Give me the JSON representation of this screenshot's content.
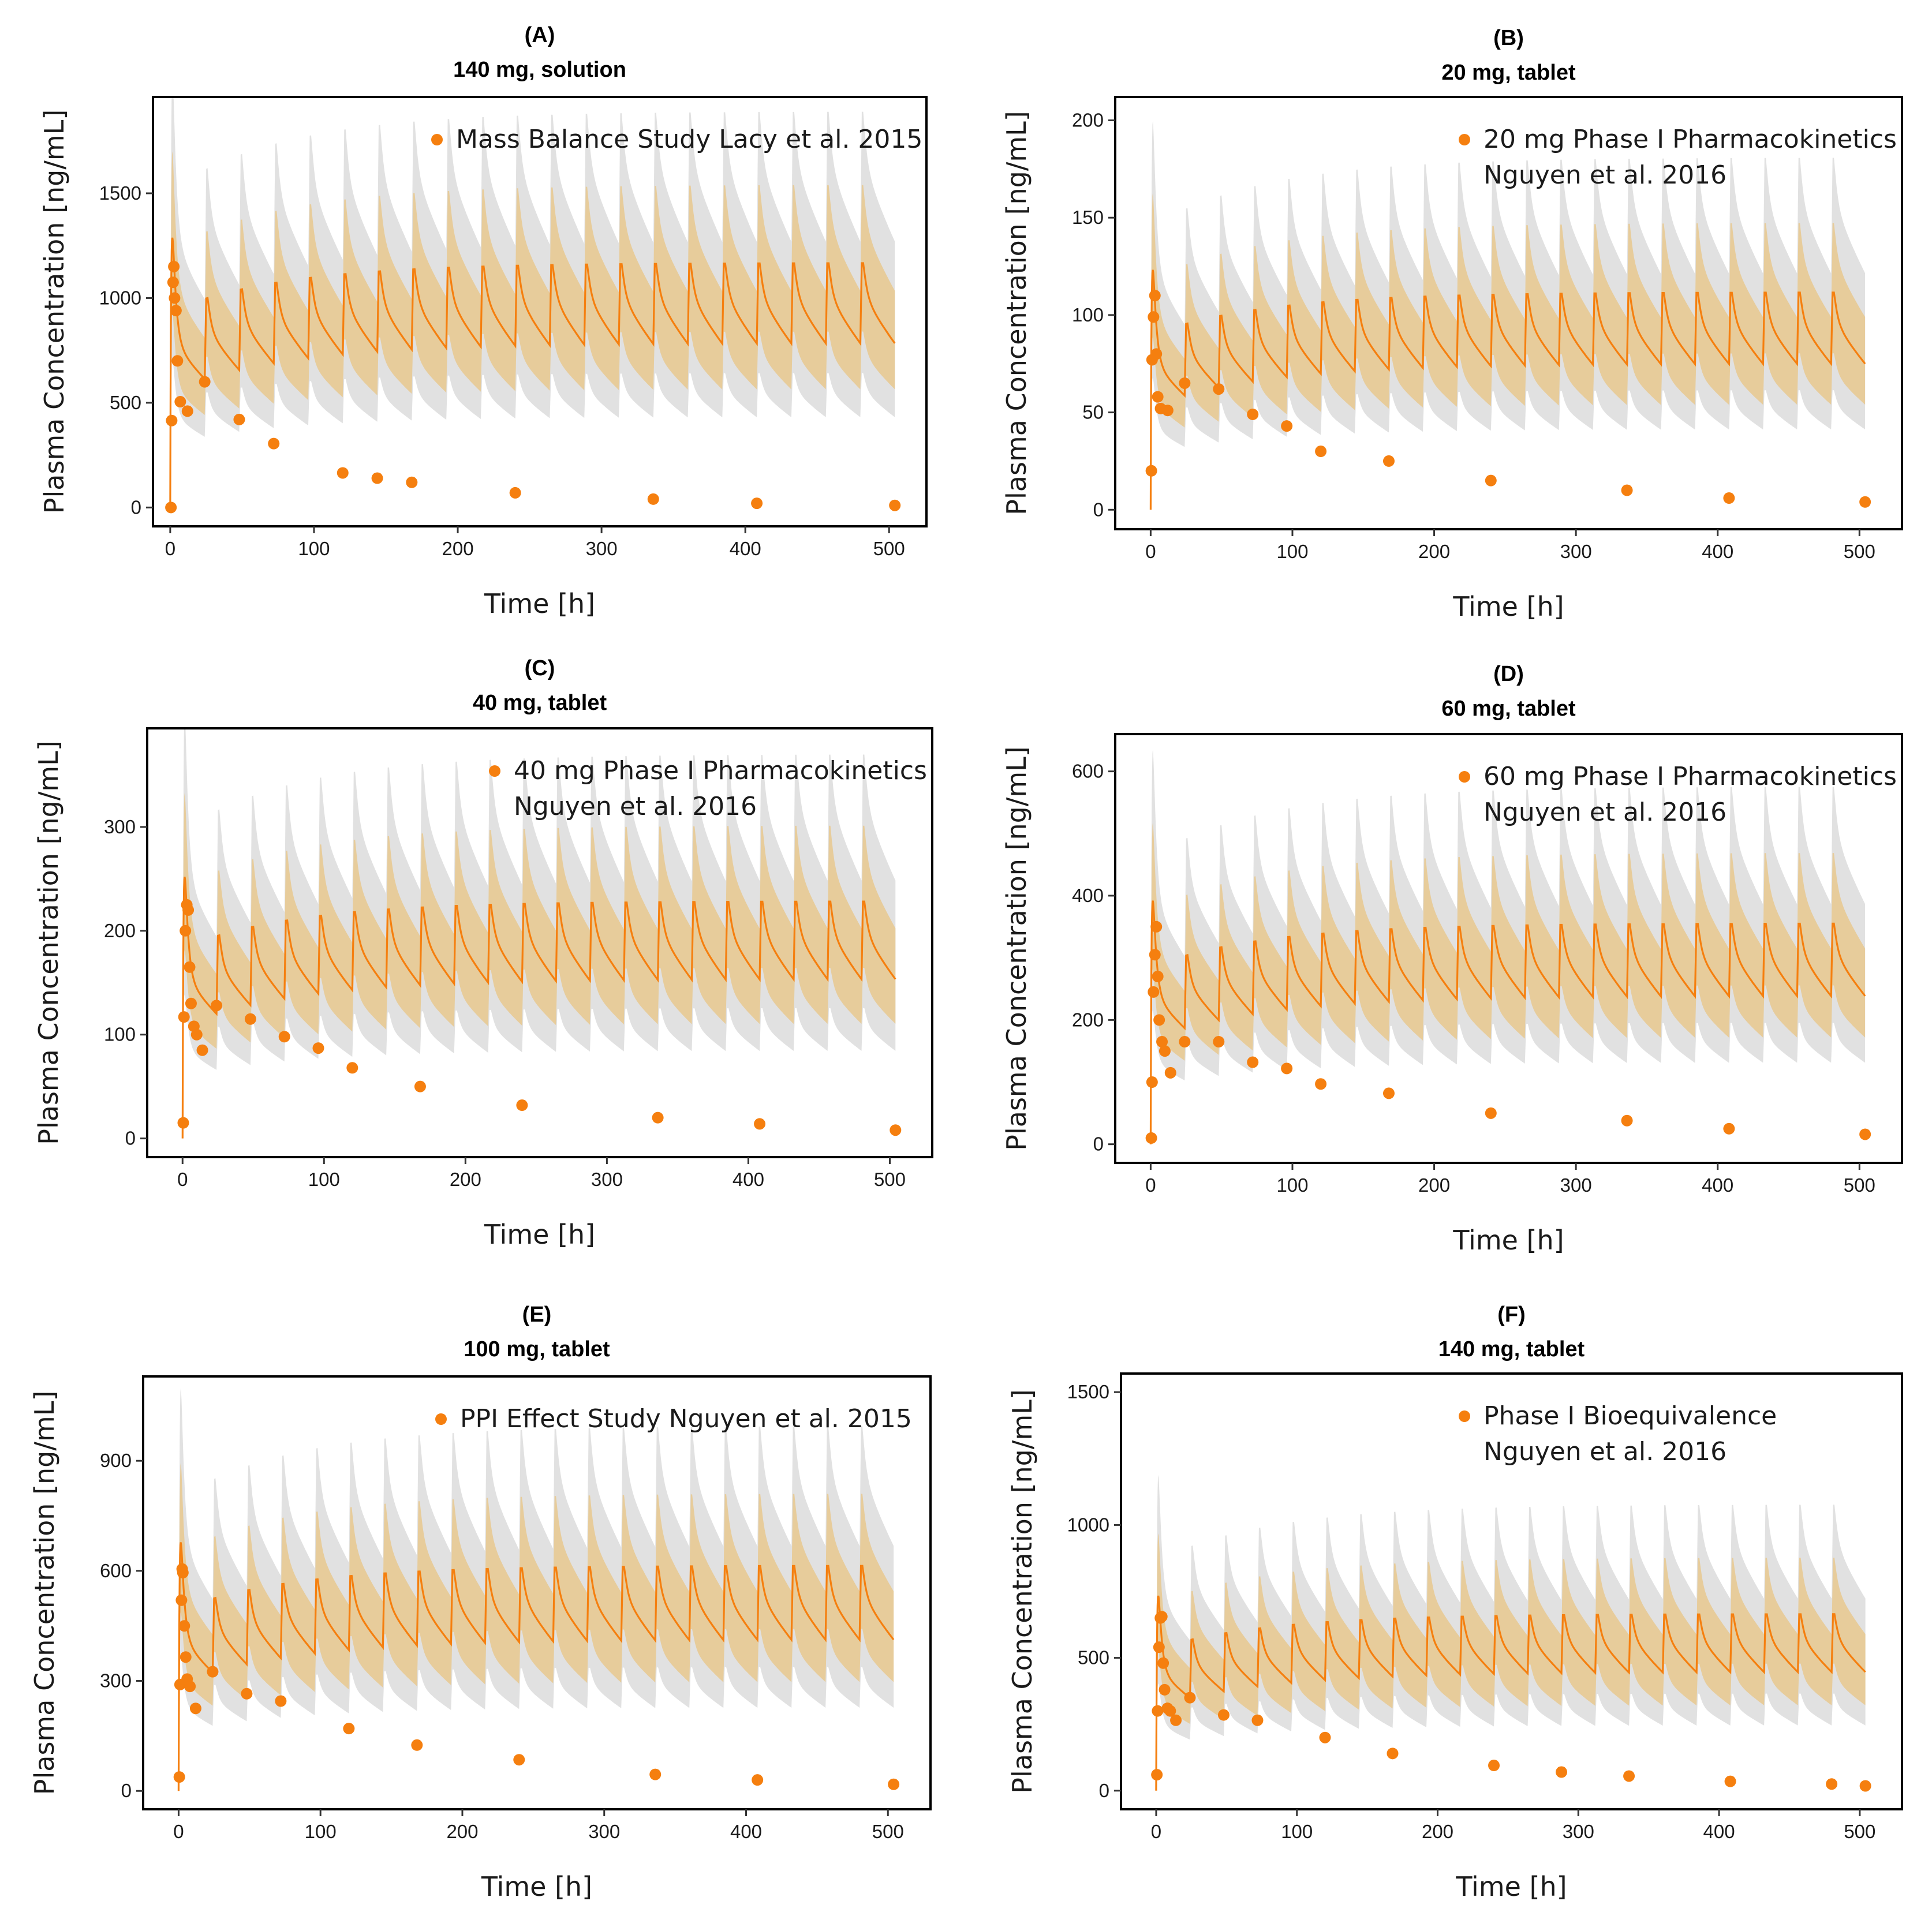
{
  "colors": {
    "accent": "#f57f0f",
    "band_outer": "#dcdcdc",
    "band_inner": "#e8c88e",
    "frame": "#000000"
  },
  "chart_data": [
    {
      "type": "line",
      "panel": "(A)",
      "title": "140 mg, solution",
      "xlabel": "Time [h]",
      "ylabel": "Plasma Concentration [ng/mL]",
      "xlim": [
        -12,
        526
      ],
      "ylim": [
        -90,
        1960
      ],
      "xticks": [
        0,
        100,
        200,
        300,
        400,
        500
      ],
      "yticks": [
        0,
        500,
        1000,
        1500
      ],
      "legend": [
        "Mass Balance Study Lacy et al. 2015"
      ],
      "legend_position": "top-right",
      "series": [
        {
          "name": "Mass Balance Study Lacy et al. 2015",
          "observed": [
            [
              0.5,
              0
            ],
            [
              1,
              415
            ],
            [
              2,
              1075
            ],
            [
              2.5,
              1150
            ],
            [
              3,
              1000
            ],
            [
              4,
              940
            ],
            [
              5,
              700
            ],
            [
              7,
              505
            ],
            [
              12,
              460
            ],
            [
              24,
              600
            ],
            [
              48,
              420
            ],
            [
              72,
              305
            ],
            [
              120,
              165
            ],
            [
              144,
              140
            ],
            [
              168,
              120
            ],
            [
              240,
              70
            ],
            [
              336,
              40
            ],
            [
              408,
              20
            ],
            [
              504,
              10
            ]
          ]
        }
      ]
    },
    {
      "type": "line",
      "panel": "(B)",
      "title": "20 mg, tablet",
      "xlabel": "Time [h]",
      "ylabel": "Plasma Concentration [ng/mL]",
      "xlim": [
        -25,
        530
      ],
      "ylim": [
        -10,
        212
      ],
      "xticks": [
        0,
        100,
        200,
        300,
        400,
        500
      ],
      "yticks": [
        0,
        50,
        100,
        150,
        200
      ],
      "legend": [
        "20 mg Phase I Pharmacokinetics",
        "Nguyen et al. 2016"
      ],
      "legend_position": "top-right",
      "series": [
        {
          "name": "20 mg Phase I Pharmacokinetics Nguyen et al. 2016",
          "observed": [
            [
              0.5,
              20
            ],
            [
              1,
              77
            ],
            [
              2,
              99
            ],
            [
              3,
              110
            ],
            [
              4,
              80
            ],
            [
              5,
              58
            ],
            [
              7,
              52
            ],
            [
              12,
              51
            ],
            [
              24,
              65
            ],
            [
              48,
              62
            ],
            [
              72,
              49
            ],
            [
              96,
              43
            ],
            [
              120,
              30
            ],
            [
              168,
              25
            ],
            [
              240,
              15
            ],
            [
              336,
              10
            ],
            [
              408,
              6
            ],
            [
              504,
              4
            ]
          ]
        }
      ]
    },
    {
      "type": "line",
      "panel": "(C)",
      "title": "40 mg, tablet",
      "xlabel": "Time [h]",
      "ylabel": "Plasma Concentration [ng/mL]",
      "xlim": [
        -25,
        530
      ],
      "ylim": [
        -18,
        395
      ],
      "xticks": [
        0,
        100,
        200,
        300,
        400,
        500
      ],
      "yticks": [
        0,
        100,
        200,
        300
      ],
      "legend": [
        "40 mg Phase I Pharmacokinetics",
        "Nguyen et al. 2016"
      ],
      "legend_position": "top-right",
      "series": [
        {
          "name": "40 mg Phase I Pharmacokinetics Nguyen et al. 2016",
          "observed": [
            [
              0.5,
              15
            ],
            [
              1,
              117
            ],
            [
              2,
              200
            ],
            [
              3,
              225
            ],
            [
              4,
              220
            ],
            [
              5,
              165
            ],
            [
              6,
              130
            ],
            [
              8,
              108
            ],
            [
              10,
              100
            ],
            [
              14,
              85
            ],
            [
              24,
              128
            ],
            [
              48,
              115
            ],
            [
              72,
              98
            ],
            [
              96,
              87
            ],
            [
              120,
              68
            ],
            [
              168,
              50
            ],
            [
              240,
              32
            ],
            [
              336,
              20
            ],
            [
              408,
              14
            ],
            [
              504,
              8
            ]
          ]
        }
      ]
    },
    {
      "type": "line",
      "panel": "(D)",
      "title": "60 mg, tablet",
      "xlabel": "Time [h]",
      "ylabel": "Plasma Concentration [ng/mL]",
      "xlim": [
        -25,
        530
      ],
      "ylim": [
        -30,
        660
      ],
      "xticks": [
        0,
        100,
        200,
        300,
        400,
        500
      ],
      "yticks": [
        0,
        200,
        400,
        600
      ],
      "legend": [
        "60 mg Phase I Pharmacokinetics",
        "Nguyen et al. 2016"
      ],
      "legend_position": "top-right",
      "series": [
        {
          "name": "60 mg Phase I Pharmacokinetics Nguyen et al. 2016",
          "observed": [
            [
              0.5,
              10
            ],
            [
              1,
              100
            ],
            [
              2,
              245
            ],
            [
              3,
              305
            ],
            [
              4,
              350
            ],
            [
              5,
              270
            ],
            [
              6,
              200
            ],
            [
              8,
              165
            ],
            [
              10,
              150
            ],
            [
              14,
              115
            ],
            [
              24,
              165
            ],
            [
              48,
              165
            ],
            [
              72,
              132
            ],
            [
              96,
              122
            ],
            [
              120,
              97
            ],
            [
              168,
              82
            ],
            [
              240,
              50
            ],
            [
              336,
              38
            ],
            [
              408,
              25
            ],
            [
              504,
              16
            ]
          ]
        }
      ]
    },
    {
      "type": "line",
      "panel": "(E)",
      "title": "100 mg, tablet",
      "xlabel": "Time [h]",
      "ylabel": "Plasma Concentration [ng/mL]",
      "xlim": [
        -25,
        530
      ],
      "ylim": [
        -50,
        1130
      ],
      "xticks": [
        0,
        100,
        200,
        300,
        400,
        500
      ],
      "yticks": [
        0,
        300,
        600,
        900
      ],
      "legend": [
        "PPI Effect Study Nguyen et al. 2015"
      ],
      "legend_position": "top-right",
      "series": [
        {
          "name": "PPI Effect Study Nguyen et al. 2015",
          "observed": [
            [
              0.5,
              38
            ],
            [
              1,
              290
            ],
            [
              2,
              520
            ],
            [
              2.5,
              605
            ],
            [
              3,
              595
            ],
            [
              4,
              450
            ],
            [
              5,
              365
            ],
            [
              6,
              305
            ],
            [
              8,
              285
            ],
            [
              12,
              225
            ],
            [
              24,
              325
            ],
            [
              48,
              265
            ],
            [
              72,
              245
            ],
            [
              120,
              170
            ],
            [
              168,
              125
            ],
            [
              240,
              85
            ],
            [
              336,
              45
            ],
            [
              408,
              30
            ],
            [
              504,
              18
            ]
          ]
        }
      ]
    },
    {
      "type": "line",
      "panel": "(F)",
      "title": "140 mg, tablet",
      "xlabel": "Time [h]",
      "ylabel": "Plasma Concentration [ng/mL]",
      "xlim": [
        -25,
        530
      ],
      "ylim": [
        -70,
        1570
      ],
      "xticks": [
        0,
        100,
        200,
        300,
        400,
        500
      ],
      "yticks": [
        0,
        500,
        1000,
        1500
      ],
      "legend": [
        "Phase I Bioequivalence",
        "Nguyen et al. 2016"
      ],
      "legend_position": "top-right",
      "series": [
        {
          "name": "Phase I Bioequivalence Nguyen et al. 2016",
          "observed": [
            [
              0.5,
              60
            ],
            [
              1,
              300
            ],
            [
              2,
              540
            ],
            [
              3,
              650
            ],
            [
              4,
              655
            ],
            [
              5,
              480
            ],
            [
              6,
              380
            ],
            [
              8,
              310
            ],
            [
              10,
              300
            ],
            [
              14,
              265
            ],
            [
              24,
              350
            ],
            [
              48,
              285
            ],
            [
              72,
              265
            ],
            [
              120,
              200
            ],
            [
              168,
              140
            ],
            [
              240,
              95
            ],
            [
              288,
              70
            ],
            [
              336,
              55
            ],
            [
              408,
              35
            ],
            [
              480,
              25
            ],
            [
              504,
              18
            ]
          ]
        }
      ]
    }
  ]
}
